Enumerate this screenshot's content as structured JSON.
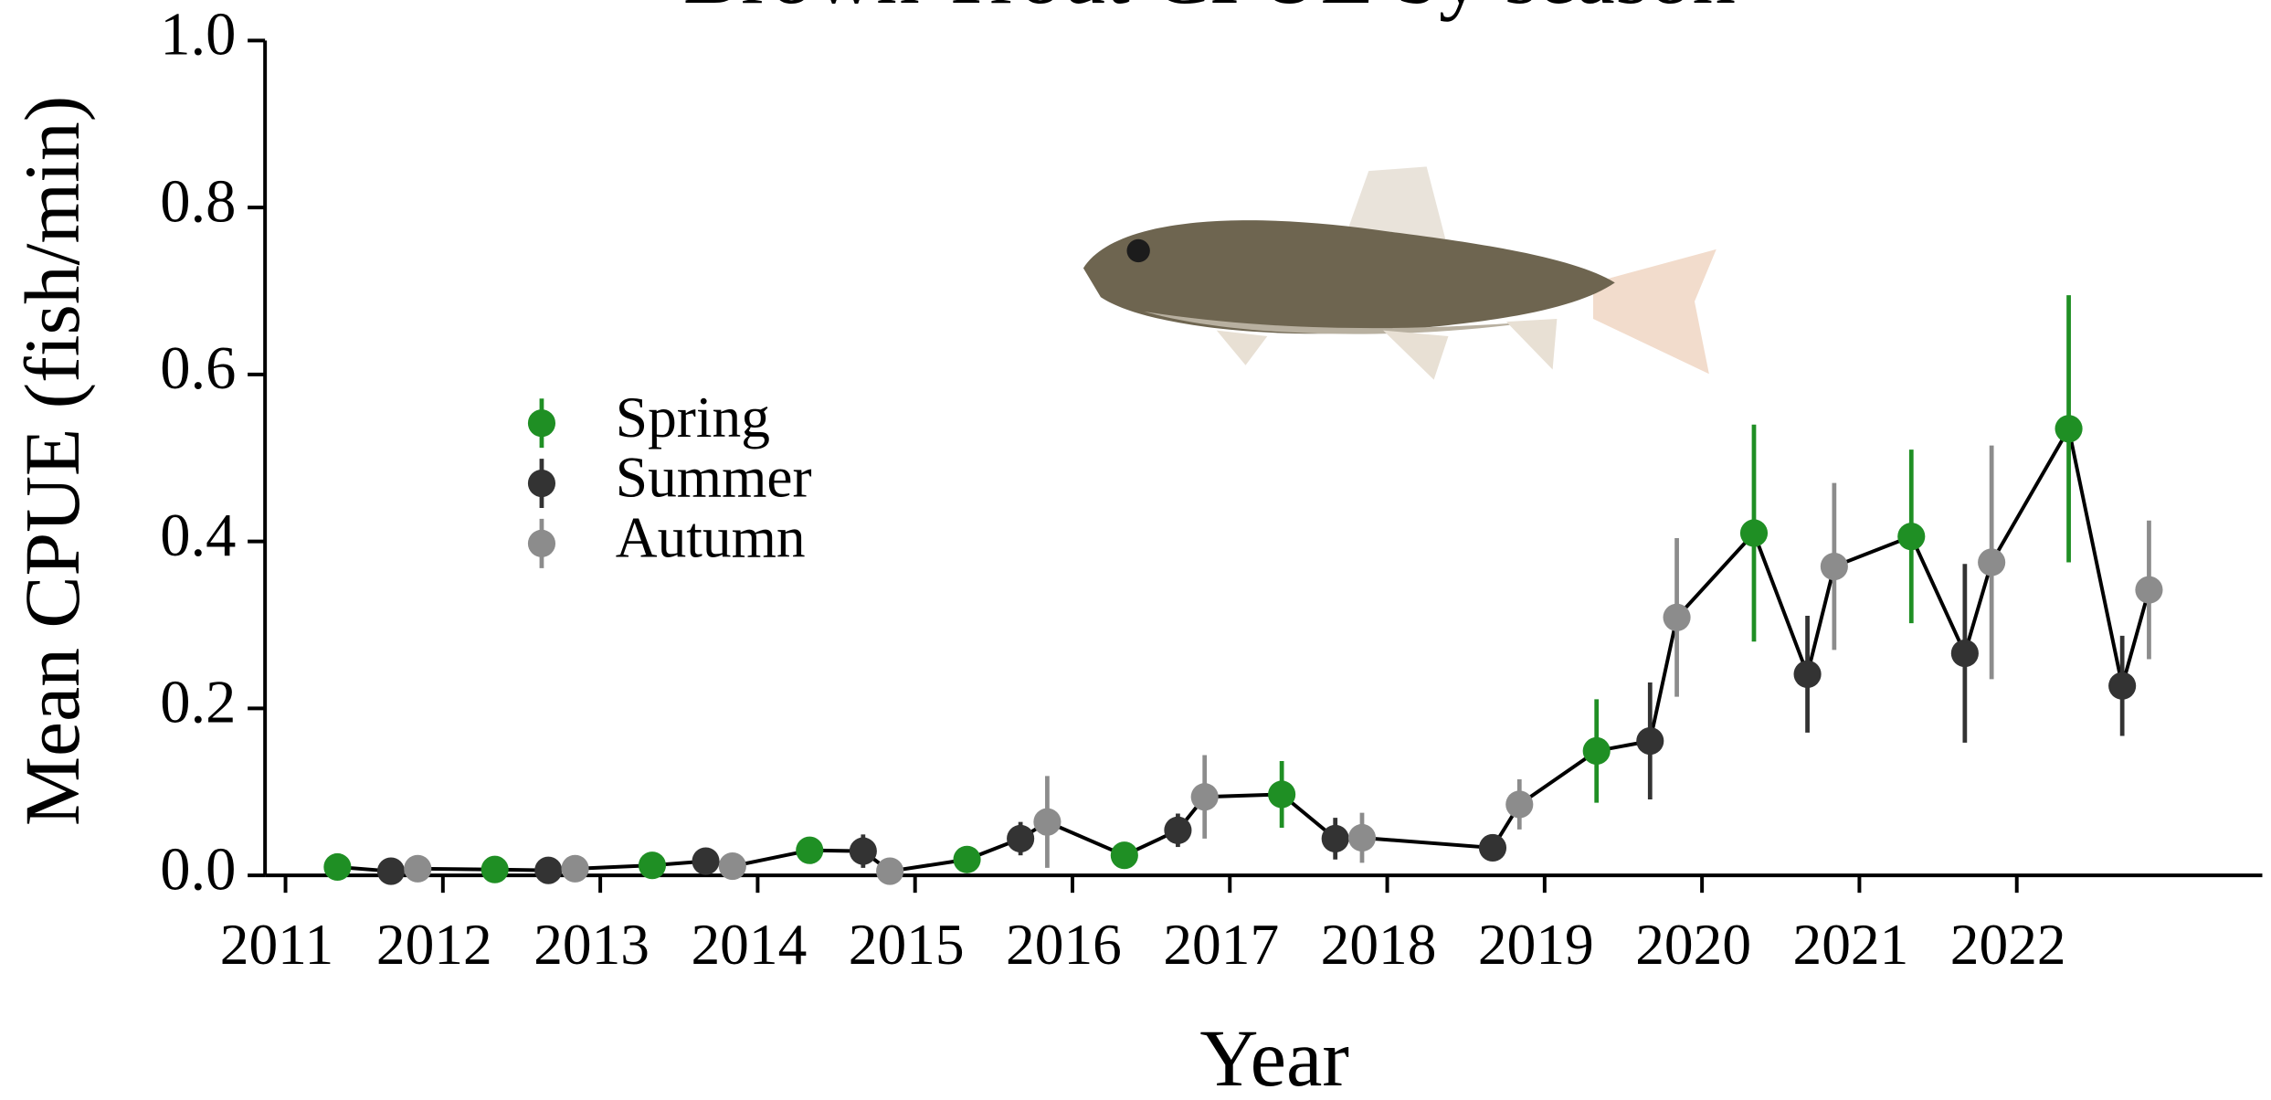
{
  "chart_data": {
    "type": "scatter",
    "title": "Brown Trout CPUE by season",
    "x_label": "Year",
    "y_label": "Mean CPUE (fish/min)",
    "connect_line": true,
    "line_color": "#000000",
    "series": [
      {
        "name": "Spring",
        "color": "#1f8f24",
        "x": [
          2011.33,
          2012.33,
          2013.33,
          2014.33,
          2015.33,
          2016.33,
          2017.33,
          2019.33,
          2020.33,
          2021.33,
          2022.33
        ],
        "values": [
          0.01,
          0.007,
          0.012,
          0.03,
          0.019,
          0.024,
          0.097,
          0.149,
          0.41,
          0.406,
          0.535
        ],
        "errors": [
          0.004,
          0.003,
          0.004,
          0.01,
          0.01,
          0.01,
          0.04,
          0.062,
          0.13,
          0.104,
          0.16
        ]
      },
      {
        "name": "Summer",
        "color": "#333333",
        "x": [
          2011.67,
          2012.67,
          2013.67,
          2014.67,
          2015.67,
          2016.67,
          2017.67,
          2018.67,
          2019.67,
          2020.67,
          2021.67,
          2022.67
        ],
        "values": [
          0.005,
          0.006,
          0.017,
          0.029,
          0.044,
          0.054,
          0.044,
          0.033,
          0.161,
          0.241,
          0.266,
          0.227
        ],
        "errors": [
          0.003,
          0.003,
          0.006,
          0.02,
          0.02,
          0.02,
          0.025,
          0.01,
          0.07,
          0.07,
          0.107,
          0.06
        ]
      },
      {
        "name": "Autumn",
        "color": "#8c8c8c",
        "x": [
          2011.84,
          2012.84,
          2013.84,
          2014.84,
          2015.84,
          2016.84,
          2017.84,
          2018.84,
          2019.84,
          2020.84,
          2021.84,
          2022.84
        ],
        "values": [
          0.008,
          0.008,
          0.011,
          0.005,
          0.064,
          0.094,
          0.045,
          0.085,
          0.309,
          0.37,
          0.375,
          0.342
        ],
        "errors": [
          0.003,
          0.003,
          0.004,
          0.003,
          0.055,
          0.05,
          0.03,
          0.03,
          0.095,
          0.1,
          0.14,
          0.083
        ]
      }
    ],
    "xlim": [
      2010.87,
      2023.56
    ],
    "xticks": [
      2011,
      2012,
      2013,
      2014,
      2015,
      2016,
      2017,
      2018,
      2019,
      2020,
      2021,
      2022
    ],
    "ylim": [
      0,
      1
    ],
    "yticks": [
      {
        "value": 0,
        "label": "0.0"
      },
      {
        "value": 0.2,
        "label": "0.2"
      },
      {
        "value": 0.4,
        "label": "0.4"
      },
      {
        "value": 0.6,
        "label": "0.6"
      },
      {
        "value": 0.8,
        "label": "0.8"
      },
      {
        "value": 1,
        "label": "1.0"
      }
    ],
    "grid": false,
    "legend": "upper left"
  }
}
